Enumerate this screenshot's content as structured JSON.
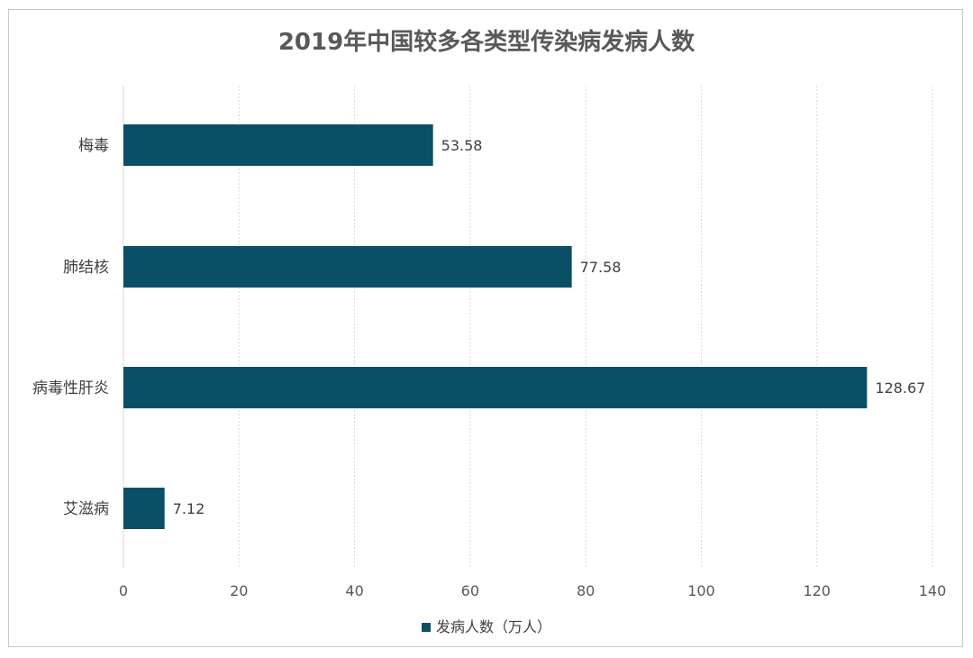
{
  "chart_data": {
    "type": "bar",
    "orientation": "horizontal",
    "title": "2019年中国较多各类型传染病发病人数",
    "categories": [
      "梅毒",
      "肺结核",
      "病毒性肝炎",
      "艾滋病"
    ],
    "series": [
      {
        "name": "发病人数（万人）",
        "values": [
          53.58,
          77.58,
          128.67,
          7.12
        ],
        "color": "#0b4f66"
      }
    ],
    "data_labels": [
      "53.58",
      "77.58",
      "128.67",
      "7.12"
    ],
    "xlim": [
      0,
      140
    ],
    "x_ticks": [
      0,
      20,
      40,
      60,
      80,
      100,
      120,
      140
    ],
    "grid": true,
    "legend_position": "bottom"
  }
}
